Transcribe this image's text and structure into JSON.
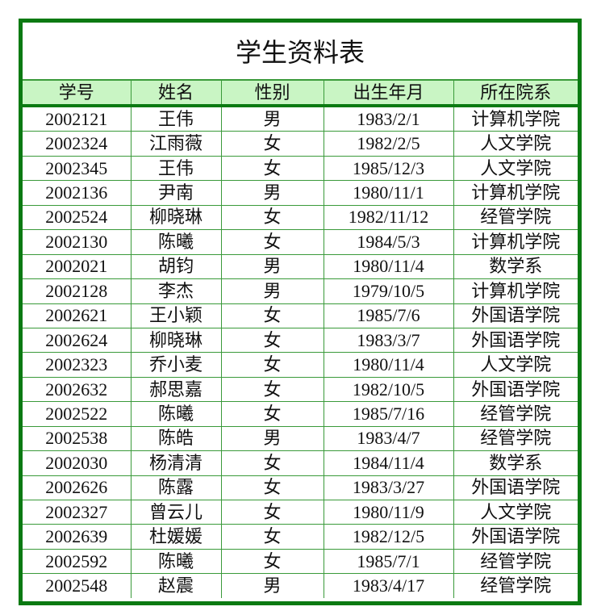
{
  "title": "学生资料表",
  "headers": [
    "学号",
    "姓名",
    "性别",
    "出生年月",
    "所在院系"
  ],
  "rows": [
    [
      "2002121",
      "王伟",
      "男",
      "1983/2/1",
      "计算机学院"
    ],
    [
      "2002324",
      "江雨薇",
      "女",
      "1982/2/5",
      "人文学院"
    ],
    [
      "2002345",
      "王伟",
      "女",
      "1985/12/3",
      "人文学院"
    ],
    [
      "2002136",
      "尹南",
      "男",
      "1980/11/1",
      "计算机学院"
    ],
    [
      "2002524",
      "柳晓琳",
      "女",
      "1982/11/12",
      "经管学院"
    ],
    [
      "2002130",
      "陈曦",
      "女",
      "1984/5/3",
      "计算机学院"
    ],
    [
      "2002021",
      "胡钧",
      "男",
      "1980/11/4",
      "数学系"
    ],
    [
      "2002128",
      "李杰",
      "男",
      "1979/10/5",
      "计算机学院"
    ],
    [
      "2002621",
      "王小颖",
      "女",
      "1985/7/6",
      "外国语学院"
    ],
    [
      "2002624",
      "柳晓琳",
      "女",
      "1983/3/7",
      "外国语学院"
    ],
    [
      "2002323",
      "乔小麦",
      "女",
      "1980/11/4",
      "人文学院"
    ],
    [
      "2002632",
      "郝思嘉",
      "女",
      "1982/10/5",
      "外国语学院"
    ],
    [
      "2002522",
      "陈曦",
      "女",
      "1985/7/16",
      "经管学院"
    ],
    [
      "2002538",
      "陈皓",
      "男",
      "1983/4/7",
      "经管学院"
    ],
    [
      "2002030",
      "杨清清",
      "女",
      "1984/11/4",
      "数学系"
    ],
    [
      "2002626",
      "陈露",
      "女",
      "1983/3/27",
      "外国语学院"
    ],
    [
      "2002327",
      "曾云儿",
      "女",
      "1980/11/9",
      "人文学院"
    ],
    [
      "2002639",
      "杜媛媛",
      "女",
      "1982/12/5",
      "外国语学院"
    ],
    [
      "2002592",
      "陈曦",
      "女",
      "1985/7/1",
      "经管学院"
    ],
    [
      "2002548",
      "赵震",
      "男",
      "1983/4/17",
      "经管学院"
    ]
  ],
  "colors": {
    "border": "#0b7a12",
    "header_bg": "#c9f5c4"
  }
}
